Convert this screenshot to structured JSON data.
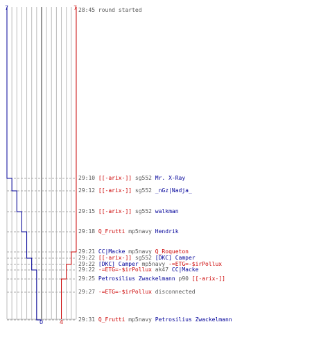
{
  "colors": {
    "red": "#cc0000",
    "blue": "#000099",
    "text": "#555555",
    "grid": "#bbbbbb",
    "center": "#777777"
  },
  "chart_data": {
    "type": "line",
    "xlabel": "",
    "ylabel": "",
    "x_range_players": [
      0,
      7
    ],
    "series": [
      {
        "team": "blue",
        "start": 7,
        "end": 0,
        "steps": [
          7,
          6,
          5,
          4,
          3,
          2,
          1,
          0
        ]
      },
      {
        "team": "red",
        "start": 7,
        "end": 4,
        "steps": [
          7,
          6,
          5,
          4
        ]
      }
    ],
    "labels": {
      "blue_start": "7",
      "red_start": "7",
      "blue_end": "0",
      "red_end": "4"
    }
  },
  "events": [
    {
      "time": "28:45",
      "parts": [
        {
          "text": "round started",
          "c": "plain"
        }
      ]
    },
    {
      "time": "29:10",
      "parts": [
        {
          "text": "[[-arix-]]",
          "c": "red"
        },
        {
          "text": " sg552 ",
          "c": "plain"
        },
        {
          "text": "Mr. X-Ray",
          "c": "blue"
        }
      ]
    },
    {
      "time": "29:12",
      "parts": [
        {
          "text": "[[-arix-]]",
          "c": "red"
        },
        {
          "text": " sg552 ",
          "c": "plain"
        },
        {
          "text": "_nGz|Nadja_",
          "c": "blue"
        }
      ]
    },
    {
      "time": "29:15",
      "parts": [
        {
          "text": "[[-arix-]]",
          "c": "red"
        },
        {
          "text": " sg552 ",
          "c": "plain"
        },
        {
          "text": "walkman",
          "c": "blue"
        }
      ]
    },
    {
      "time": "29:18",
      "parts": [
        {
          "text": "Q_Frutti",
          "c": "red"
        },
        {
          "text": " mp5navy ",
          "c": "plain"
        },
        {
          "text": "Hendrik",
          "c": "blue"
        }
      ]
    },
    {
      "time": "29:21",
      "parts": [
        {
          "text": "CC|Macke",
          "c": "blue"
        },
        {
          "text": " mp5navy ",
          "c": "plain"
        },
        {
          "text": "Q_Roqueton",
          "c": "red"
        }
      ]
    },
    {
      "time": "29:22",
      "parts": [
        {
          "text": "[[-arix-]]",
          "c": "red"
        },
        {
          "text": " sg552 ",
          "c": "plain"
        },
        {
          "text": "[DKC] Camper",
          "c": "blue"
        }
      ]
    },
    {
      "time": "29:22",
      "parts": [
        {
          "text": "[DKC] Camper",
          "c": "blue"
        },
        {
          "text": " mp5navy ",
          "c": "plain"
        },
        {
          "text": "-=ETG=-$irPollux",
          "c": "red"
        }
      ]
    },
    {
      "time": "29:22",
      "parts": [
        {
          "text": "-=ETG=-$irPollux",
          "c": "red"
        },
        {
          "text": " ak47 ",
          "c": "plain"
        },
        {
          "text": "CC|Macke",
          "c": "blue"
        }
      ]
    },
    {
      "time": "29:25",
      "parts": [
        {
          "text": "Petrosilius Zwackelmann",
          "c": "blue"
        },
        {
          "text": " p90 ",
          "c": "plain"
        },
        {
          "text": "[[-arix-]]",
          "c": "red"
        }
      ]
    },
    {
      "time": "29:27",
      "parts": [
        {
          "text": "-=ETG=-$irPollux",
          "c": "red"
        },
        {
          "text": " disconnected",
          "c": "plain"
        }
      ]
    },
    {
      "time": "29:31",
      "parts": [
        {
          "text": "Q_Frutti",
          "c": "red"
        },
        {
          "text": " mp5navy ",
          "c": "plain"
        },
        {
          "text": "Petrosilius Zwackelmann",
          "c": "blue"
        }
      ]
    }
  ]
}
